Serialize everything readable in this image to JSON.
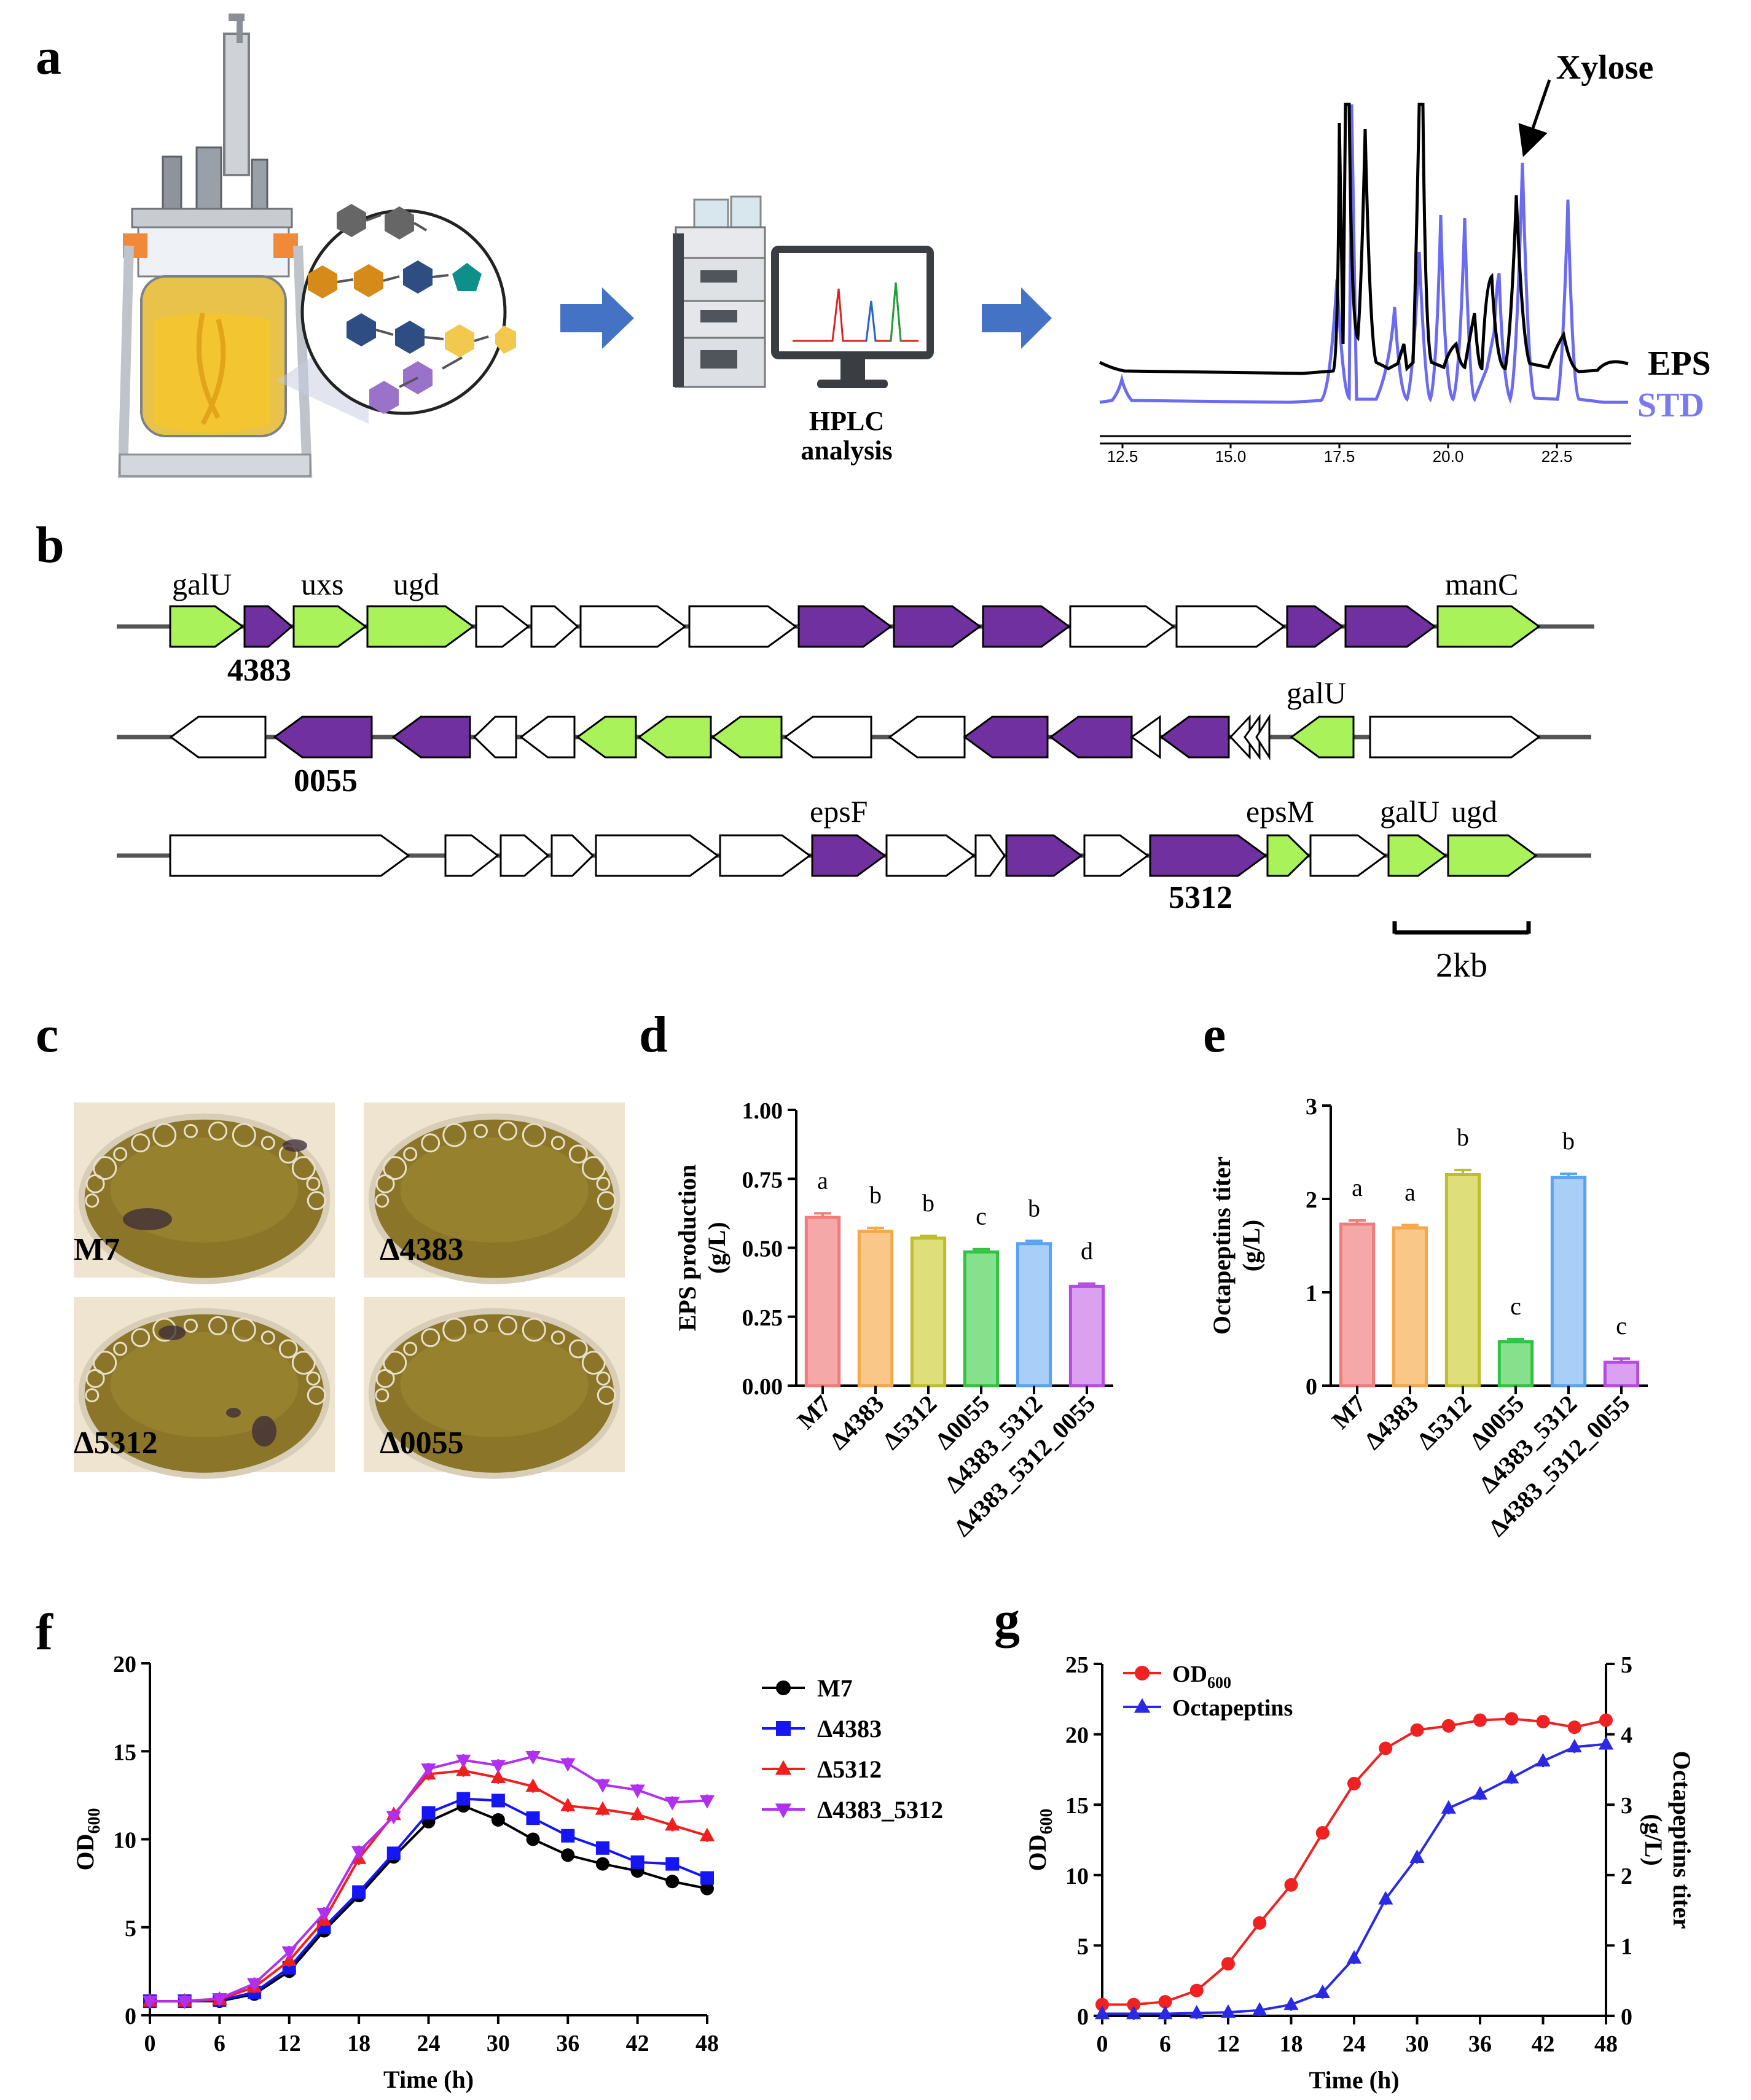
{
  "panels": {
    "a": {
      "label": "a",
      "hplc_label_1": "HPLC",
      "hplc_label_2": "analysis",
      "xylose_label": "Xylose",
      "eps_label": "EPS",
      "std_label": "STD",
      "xticks": [
        "12.5",
        "15.0",
        "17.5",
        "20.0",
        "22.5"
      ],
      "colors": {
        "eps": "#000000",
        "std": "#6b6bf2",
        "arrow": "#4472c4"
      }
    },
    "b": {
      "label": "b",
      "scale_label": "2kb",
      "row1": {
        "gene_labels": [
          "galU",
          "uxs",
          "ugd",
          "manC"
        ],
        "locus": "4383"
      },
      "row2": {
        "gene_labels": [
          "galU"
        ],
        "locus": "0055"
      },
      "row3": {
        "gene_labels": [
          "epsF",
          "epsM",
          "galU",
          "ugd"
        ],
        "locus": "5312"
      },
      "colors": {
        "purple": "#7030a0",
        "green": "#a9f25a"
      }
    },
    "c": {
      "label": "c",
      "photos": [
        "M7",
        "Δ4383",
        "Δ5312",
        "Δ0055"
      ]
    }
  },
  "chart_data": [
    {
      "id": "d",
      "label": "d",
      "type": "bar",
      "ylabel_1": "EPS production",
      "ylabel_2": "(g/L)",
      "ylim": [
        0,
        1.0
      ],
      "yticks": [
        "0.00",
        "0.25",
        "0.50",
        "0.75",
        "1.00"
      ],
      "categories": [
        "M7",
        "Δ4383",
        "Δ5312",
        "Δ0055",
        "Δ4383_5312",
        "Δ4383_5312_0055"
      ],
      "values": [
        0.61,
        0.56,
        0.535,
        0.485,
        0.515,
        0.36
      ],
      "errors": [
        0.015,
        0.012,
        0.008,
        0.01,
        0.01,
        0.01
      ],
      "letters": [
        "a",
        "b",
        "b",
        "c",
        "b",
        "d"
      ],
      "colors": [
        "#f4a9a8",
        "#f9c889",
        "#dede7a",
        "#86e08c",
        "#a9cff9",
        "#dba0f0"
      ],
      "edge_colors": [
        "#f27b7b",
        "#f3a84c",
        "#bdbd2e",
        "#33c244",
        "#5aa3ef",
        "#b34de0"
      ]
    },
    {
      "id": "e",
      "label": "e",
      "type": "bar",
      "ylabel_1": "Octapeptins titer",
      "ylabel_2": "(g/L)",
      "ylim": [
        0,
        3
      ],
      "yticks": [
        "0",
        "1",
        "2",
        "3"
      ],
      "categories": [
        "M7",
        "Δ4383",
        "Δ5312",
        "Δ0055",
        "Δ4383_5312",
        "Δ4383_5312_0055"
      ],
      "values": [
        1.73,
        1.69,
        2.26,
        0.47,
        2.23,
        0.25
      ],
      "errors": [
        0.04,
        0.03,
        0.05,
        0.03,
        0.04,
        0.04
      ],
      "letters": [
        "a",
        "a",
        "b",
        "c",
        "b",
        "c"
      ],
      "colors": [
        "#f4a9a8",
        "#f9c889",
        "#dede7a",
        "#86e08c",
        "#a9cff9",
        "#dba0f0"
      ],
      "edge_colors": [
        "#f27b7b",
        "#f3a84c",
        "#bdbd2e",
        "#33c244",
        "#5aa3ef",
        "#b34de0"
      ]
    },
    {
      "id": "f",
      "label": "f",
      "type": "line",
      "xlabel": "Time (h)",
      "ylabel": "OD",
      "ylabel_sub": "600",
      "xlim": [
        0,
        48
      ],
      "ylim": [
        0,
        20
      ],
      "xticks": [
        "0",
        "6",
        "12",
        "18",
        "24",
        "30",
        "36",
        "42",
        "48"
      ],
      "yticks": [
        "0",
        "5",
        "10",
        "15",
        "20"
      ],
      "x": [
        0,
        3,
        6,
        9,
        12,
        15,
        18,
        21,
        24,
        27,
        30,
        33,
        36,
        39,
        42,
        45,
        48
      ],
      "series": [
        {
          "name": "M7",
          "color": "#000000",
          "marker": "circle",
          "values": [
            0.8,
            0.8,
            0.8,
            1.2,
            2.5,
            4.8,
            6.8,
            9.0,
            11.0,
            11.9,
            11.1,
            10.0,
            9.1,
            8.6,
            8.2,
            7.6,
            7.2
          ]
        },
        {
          "name": "Δ4383",
          "color": "#1515f5",
          "marker": "square",
          "values": [
            0.8,
            0.8,
            0.85,
            1.3,
            2.7,
            5.0,
            7.0,
            9.2,
            11.5,
            12.3,
            12.2,
            11.2,
            10.2,
            9.5,
            8.7,
            8.6,
            7.8
          ]
        },
        {
          "name": "Δ5312",
          "color": "#f01f1f",
          "marker": "triangle-up",
          "values": [
            0.8,
            0.8,
            0.9,
            1.6,
            3.1,
            5.4,
            8.9,
            11.4,
            13.7,
            13.9,
            13.5,
            13.0,
            11.9,
            11.7,
            11.4,
            10.8,
            10.2
          ]
        },
        {
          "name": "Δ4383_5312",
          "color": "#b12ff0",
          "marker": "triangle-down",
          "values": [
            0.8,
            0.8,
            0.95,
            1.8,
            3.6,
            5.8,
            9.3,
            11.3,
            14.0,
            14.5,
            14.2,
            14.7,
            14.3,
            13.1,
            12.8,
            12.1,
            12.2
          ]
        }
      ]
    },
    {
      "id": "g",
      "label": "g",
      "type": "line",
      "xlabel": "Time (h)",
      "ylabel": "OD",
      "ylabel_sub": "600",
      "y2label_1": "Octapeptins titer",
      "y2label_2": "(g/L)",
      "xlim": [
        0,
        48
      ],
      "ylim": [
        0,
        25
      ],
      "y2lim": [
        0,
        5
      ],
      "xticks": [
        "0",
        "6",
        "12",
        "18",
        "24",
        "30",
        "36",
        "42",
        "48"
      ],
      "yticks": [
        "0",
        "5",
        "10",
        "15",
        "20",
        "25"
      ],
      "y2ticks": [
        "0",
        "1",
        "2",
        "3",
        "4",
        "5"
      ],
      "x": [
        0,
        3,
        6,
        9,
        12,
        15,
        18,
        21,
        24,
        27,
        30,
        33,
        36,
        39,
        42,
        45,
        48
      ],
      "series": [
        {
          "name": "OD",
          "name_sub": "600",
          "color": "#ee2222",
          "marker": "circle",
          "axis": "left",
          "values": [
            0.8,
            0.8,
            1.0,
            1.8,
            3.7,
            6.6,
            9.3,
            13.0,
            16.5,
            19.0,
            20.3,
            20.6,
            21.0,
            21.1,
            20.9,
            20.5,
            21.0
          ]
        },
        {
          "name": "Octapeptins",
          "color": "#2929e6",
          "marker": "triangle-up",
          "axis": "right",
          "values": [
            0.03,
            0.03,
            0.03,
            0.04,
            0.05,
            0.08,
            0.16,
            0.33,
            0.82,
            1.66,
            2.25,
            2.95,
            3.15,
            3.38,
            3.62,
            3.82,
            3.86
          ]
        }
      ]
    }
  ]
}
